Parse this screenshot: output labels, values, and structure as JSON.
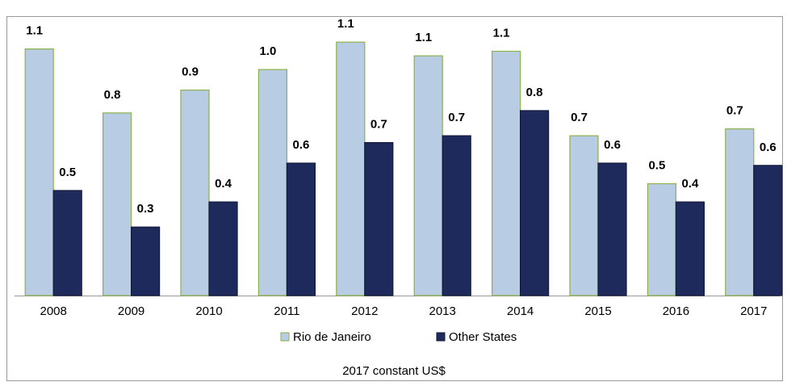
{
  "chart_data": {
    "type": "bar",
    "categories": [
      "2008",
      "2009",
      "2010",
      "2011",
      "2012",
      "2013",
      "2014",
      "2015",
      "2016",
      "2017"
    ],
    "series": [
      {
        "name": "Rio de Janeiro",
        "color": "#b8cce4",
        "stroke": "#8db14b",
        "values": [
          1.08,
          0.8,
          0.9,
          0.99,
          1.11,
          1.05,
          1.07,
          0.7,
          0.49,
          0.73
        ],
        "value_labels": [
          "1.1",
          "0.8",
          "0.9",
          "1.0",
          "1.1",
          "1.1",
          "1.1",
          "0.7",
          "0.5",
          "0.7"
        ]
      },
      {
        "name": "Other States",
        "color": "#1f2a5c",
        "stroke": "#111a3a",
        "values": [
          0.46,
          0.3,
          0.41,
          0.58,
          0.67,
          0.7,
          0.81,
          0.58,
          0.41,
          0.57
        ],
        "value_labels": [
          "0.5",
          "0.3",
          "0.4",
          "0.6",
          "0.7",
          "0.7",
          "0.8",
          "0.6",
          "0.4",
          "0.6"
        ]
      }
    ],
    "ylim": [
      0,
      1.1
    ],
    "note": "2017 constant US$"
  }
}
